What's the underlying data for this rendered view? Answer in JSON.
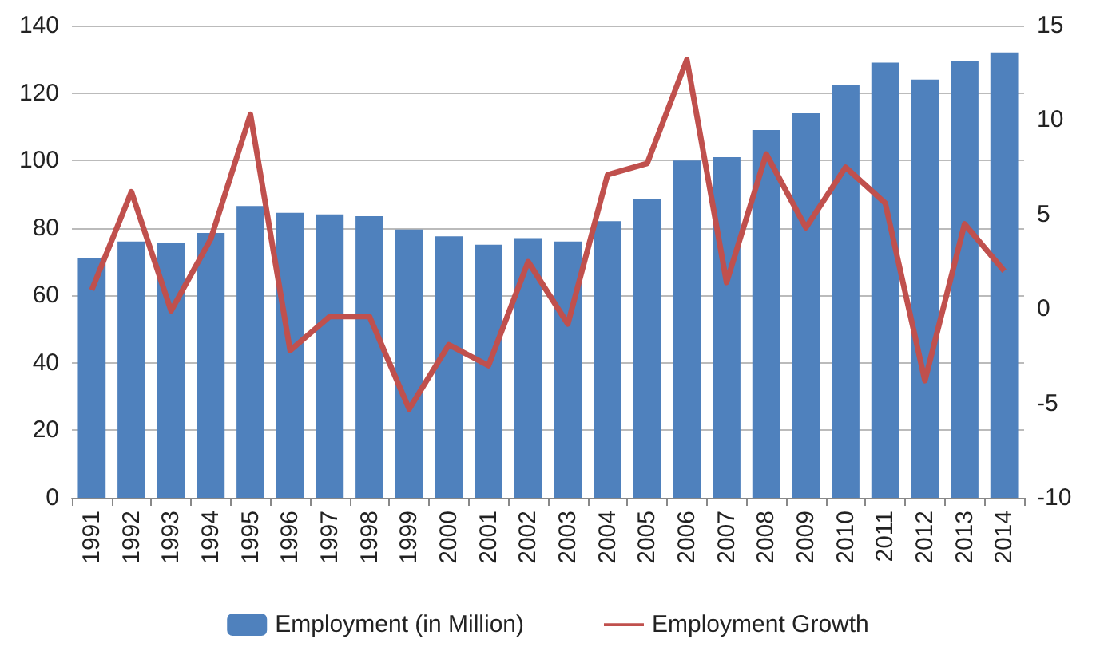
{
  "chart_data": {
    "type": "bar",
    "categories": [
      "1991",
      "1992",
      "1993",
      "1994",
      "1995",
      "1996",
      "1997",
      "1998",
      "1999",
      "2000",
      "2001",
      "2002",
      "2003",
      "2004",
      "2005",
      "2006",
      "2007",
      "2008",
      "2009",
      "2010",
      "2011",
      "2012",
      "2013",
      "2014"
    ],
    "series": [
      {
        "name": "Employment (in Million)",
        "color": "#4f81bd",
        "values": [
          71,
          76,
          75.5,
          78.5,
          86.5,
          84.5,
          84,
          83.5,
          79.5,
          77.5,
          75,
          77,
          76,
          82,
          88.5,
          100,
          101,
          109,
          114,
          122.5,
          129,
          124,
          129.5,
          132
        ]
      },
      {
        "name": "Employment Growth",
        "type": "line",
        "axis": "y2",
        "color": "#c0504d",
        "values": [
          1,
          6.2,
          -0.1,
          3.7,
          10.3,
          -2.2,
          -0.4,
          -0.4,
          -5.3,
          -1.9,
          -3,
          2.5,
          -0.8,
          7.1,
          7.7,
          13.2,
          1.4,
          8.2,
          4.3,
          7.5,
          5.6,
          -3.8,
          4.5,
          2
        ]
      }
    ],
    "ylim": [
      0,
      140
    ],
    "yticks": [
      0,
      20,
      40,
      60,
      80,
      100,
      120,
      140
    ],
    "y2lim": [
      -10,
      15
    ],
    "y2ticks": [
      -10,
      -5,
      0,
      5,
      10,
      15
    ],
    "grid": "y",
    "legend": "bottom",
    "marker": "none"
  }
}
